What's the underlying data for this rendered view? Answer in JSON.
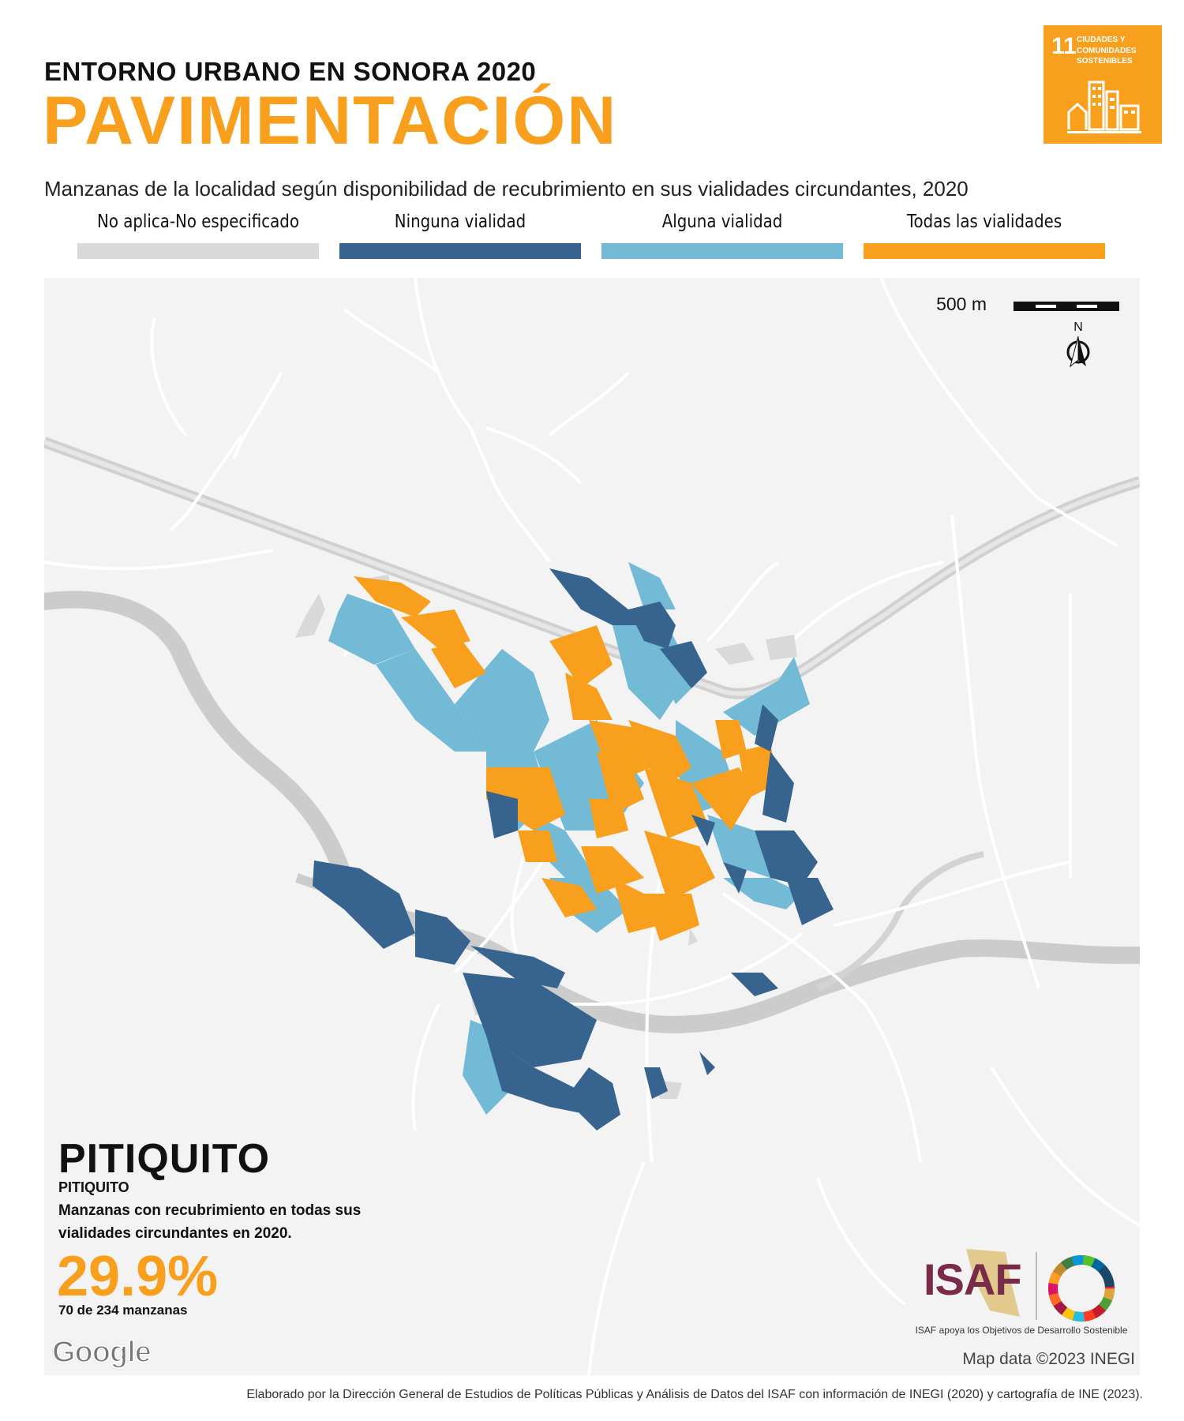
{
  "header": {
    "kicker": "ENTORNO URBANO EN SONORA 2020",
    "title": "PAVIMENTACIÓN",
    "subtitle": "Manzanas de la localidad según disponibilidad de recubrimiento en sus vialidades circundantes, 2020"
  },
  "sdg_badge": {
    "number": "11",
    "text": "CIUDADES Y COMUNIDADES SOSTENIBLES",
    "color": "#f99f1e",
    "icon": "city-buildings-icon"
  },
  "legend": [
    {
      "label": "No aplica-No especificado",
      "color": "#d9d9d9"
    },
    {
      "label": "Ninguna vialidad",
      "color": "#36648f"
    },
    {
      "label": "Alguna vialidad",
      "color": "#72bad6"
    },
    {
      "label": "Todas las vialidades",
      "color": "#f99f1e"
    }
  ],
  "map": {
    "scale_label": "500 m",
    "north_label": "N",
    "background": "#f3f3f3",
    "road_color": "#ffffff",
    "river_color": "#cccccc",
    "google_label": "Google",
    "credit": "Map data ©2023 INEGI"
  },
  "locality": {
    "municipality": "PITIQUITO",
    "name": "PITIQUITO",
    "stat_description": "Manzanas con recubrimiento en todas sus vialidades circundantes en 2020.",
    "percentage": "29.9%",
    "count": "70 de 234 manzanas"
  },
  "isaf": {
    "logo": "ISAF",
    "caption": "ISAF apoya los Objetivos de Desarrollo Sostenible"
  },
  "footer": "Elaborado por la Dirección General de Estudios de Políticas Públicas y Análisis de Datos del ISAF con información de INEGI (2020) y cartografía de INE (2023)."
}
